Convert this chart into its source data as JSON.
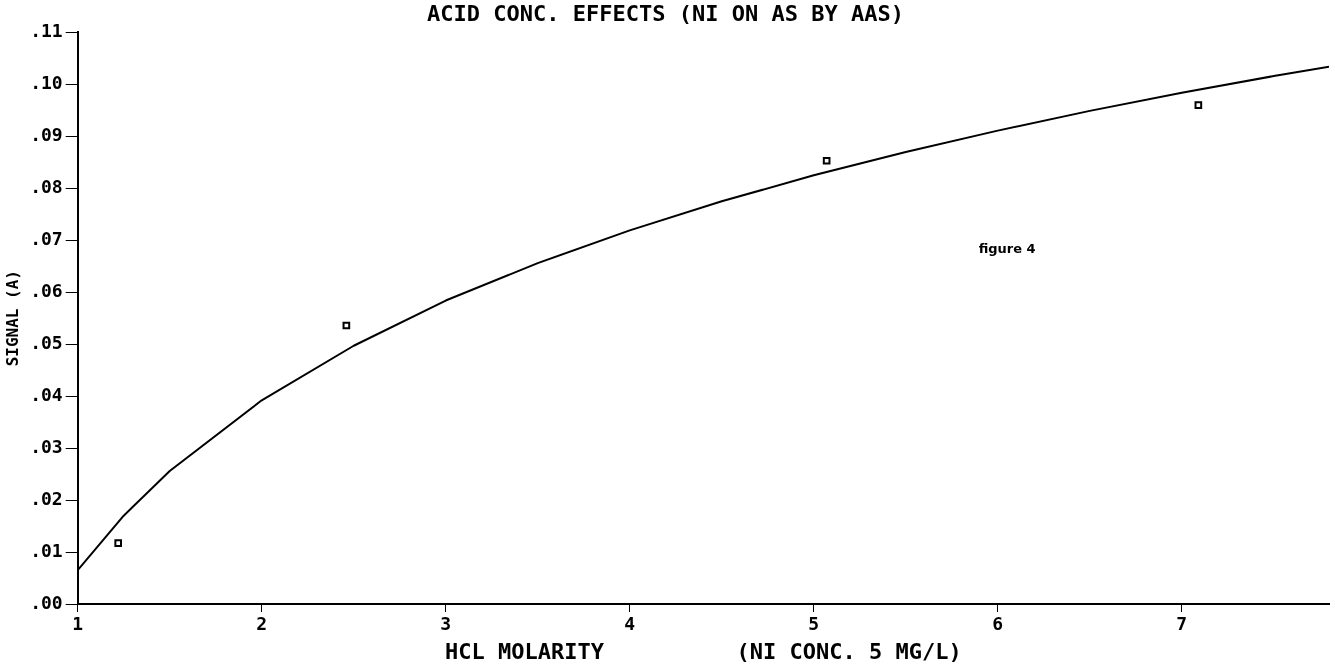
{
  "chart_data": {
    "type": "scatter",
    "title": "ACID CONC. EFFECTS (NI ON AS BY AAS)",
    "xlabel": "HCL MOLARITY          (NI CONC. 5 MG/L)",
    "ylabel": "SIGNAL (A)",
    "annotations": [
      "figure 4"
    ],
    "xlim": [
      1,
      7.8
    ],
    "xticks": [
      1,
      2,
      3,
      4,
      5,
      6,
      7
    ],
    "ylim": [
      0,
      0.11
    ],
    "yticks": [
      {
        "value": 0,
        "label": ".00"
      },
      {
        "value": 0.01,
        "label": ".01"
      },
      {
        "value": 0.02,
        "label": ".02"
      },
      {
        "value": 0.03,
        "label": ".03"
      },
      {
        "value": 0.04,
        "label": ".04"
      },
      {
        "value": 0.05,
        "label": ".05"
      },
      {
        "value": 0.06,
        "label": ".06"
      },
      {
        "value": 0.07,
        "label": ".07"
      },
      {
        "value": 0.08,
        "label": ".08"
      },
      {
        "value": 0.09,
        "label": ".09"
      },
      {
        "value": 0.1,
        "label": ".10"
      },
      {
        "value": 0.11,
        "label": ".11"
      }
    ],
    "grid": false,
    "legend": false,
    "series": [
      {
        "type": "scatter",
        "marker": "square",
        "color": "#000000",
        "x": [
          1.22,
          2.46,
          5.07,
          7.09
        ],
        "values": [
          0.0117,
          0.0536,
          0.0853,
          0.096
        ]
      },
      {
        "type": "line",
        "marker": "none",
        "color": "#000000",
        "x": [
          1,
          1.25,
          1.5,
          2,
          2.5,
          3,
          3.5,
          4,
          4.5,
          5,
          5.5,
          6,
          6.5,
          7,
          7.5,
          7.8
        ],
        "values": [
          0.0065,
          0.017,
          0.0256,
          0.0392,
          0.0497,
          0.0584,
          0.0656,
          0.0719,
          0.0775,
          0.0825,
          0.087,
          0.0911,
          0.0949,
          0.0984,
          0.1016,
          0.1034
        ]
      }
    ]
  }
}
